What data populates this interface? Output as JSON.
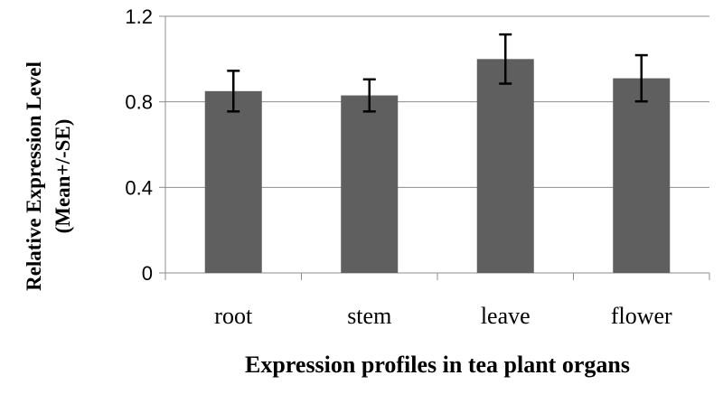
{
  "chart_data": {
    "type": "bar",
    "categories": [
      "root",
      "stem",
      "leave",
      "flower"
    ],
    "values": [
      0.85,
      0.83,
      1.0,
      0.91
    ],
    "errors": [
      0.095,
      0.075,
      0.115,
      0.108
    ],
    "xlabel": "Expression profiles in tea plant organs",
    "ylabel": [
      "Relative Expression Level",
      "(Mean+/-SE)"
    ],
    "ylim": [
      0,
      1.2
    ],
    "yticks": [
      0,
      0.4,
      0.8,
      1.2
    ],
    "ytick_labels": [
      "0",
      "0.4",
      "0.8",
      "1.2"
    ],
    "grid": true,
    "legend": "none",
    "colors": {
      "bar": "#5f5f5f",
      "error_bar": "#000000",
      "grid": "#8c8c8c"
    }
  }
}
